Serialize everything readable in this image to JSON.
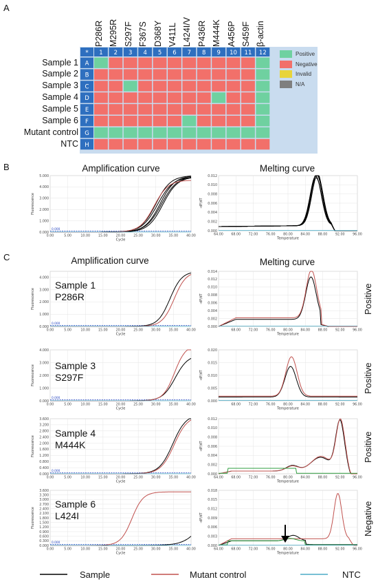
{
  "panel_a": {
    "letter": "A",
    "columns": [
      "P286R",
      "M295R",
      "S297F",
      "F367S",
      "D368Y",
      "V411L",
      "L424I/V",
      "P436R",
      "M444K",
      "A456P",
      "S459F",
      "β-actin"
    ],
    "col_numbers": [
      "1",
      "2",
      "3",
      "4",
      "5",
      "6",
      "7",
      "8",
      "9",
      "10",
      "11",
      "12"
    ],
    "corner": "*",
    "rows": [
      {
        "name": "Sample 1",
        "letter": "A",
        "cells": [
          "P",
          "N",
          "N",
          "N",
          "N",
          "N",
          "N",
          "N",
          "N",
          "N",
          "N",
          "P"
        ]
      },
      {
        "name": "Sample 2",
        "letter": "B",
        "cells": [
          "N",
          "N",
          "N",
          "N",
          "N",
          "N",
          "N",
          "N",
          "N",
          "N",
          "N",
          "P"
        ]
      },
      {
        "name": "Sample 3",
        "letter": "C",
        "cells": [
          "N",
          "N",
          "P",
          "N",
          "N",
          "N",
          "N",
          "N",
          "N",
          "N",
          "N",
          "P"
        ]
      },
      {
        "name": "Sample 4",
        "letter": "D",
        "cells": [
          "N",
          "N",
          "N",
          "N",
          "N",
          "N",
          "N",
          "N",
          "P",
          "N",
          "N",
          "P"
        ]
      },
      {
        "name": "Sample 5",
        "letter": "E",
        "cells": [
          "N",
          "N",
          "N",
          "N",
          "N",
          "N",
          "N",
          "N",
          "N",
          "N",
          "N",
          "P"
        ]
      },
      {
        "name": "Sample 6",
        "letter": "F",
        "cells": [
          "N",
          "N",
          "N",
          "N",
          "N",
          "N",
          "P",
          "N",
          "N",
          "N",
          "N",
          "P"
        ]
      },
      {
        "name": "Mutant control",
        "letter": "G",
        "cells": [
          "P",
          "P",
          "P",
          "P",
          "P",
          "P",
          "P",
          "P",
          "P",
          "P",
          "P",
          "P"
        ]
      },
      {
        "name": "NTC",
        "letter": "H",
        "cells": [
          "N",
          "N",
          "N",
          "N",
          "N",
          "N",
          "N",
          "N",
          "N",
          "N",
          "N",
          "N"
        ]
      }
    ],
    "legend": [
      {
        "label": "Positive",
        "color": "#6fd1a0"
      },
      {
        "label": "Negative",
        "color": "#f2706a"
      },
      {
        "label": "Invalid",
        "color": "#e8d43a"
      },
      {
        "label": "N/A",
        "color": "#7f7f7f"
      }
    ]
  },
  "panel_b": {
    "letter": "B",
    "amp_title": "Amplification curve",
    "melt_title": "Melting curve"
  },
  "panel_c": {
    "letter": "C",
    "amp_title": "Amplification curve",
    "melt_title": "Melting curve",
    "samples": [
      {
        "label": "Sample 1\nP286R",
        "result": "Positive"
      },
      {
        "label": "Sample 3\nS297F",
        "result": "Positive"
      },
      {
        "label": "Sample 4\nM444K",
        "result": "Positive"
      },
      {
        "label": "Sample 6\nL424I",
        "result": "Negative"
      }
    ]
  },
  "axis_text": {
    "cycle": "Cycle",
    "temperature": "Temperature",
    "fluorescence": "Fluorescence",
    "dfdt": "-dF/dT",
    "threshold": "0.000"
  },
  "chart_data": [
    {
      "type": "line",
      "title": "Amplification curve",
      "xlabel": "Cycle",
      "ylabel": "Fluorescence",
      "xlim": [
        0,
        40
      ],
      "ylim": [
        0,
        5.0
      ],
      "xticks": [
        "0.00",
        "5.00",
        "10.00",
        "15.00",
        "20.00",
        "25.00",
        "30.00",
        "35.00",
        "40.00"
      ],
      "yticks": [
        "0.000",
        "1.000",
        "2.000",
        "3.000",
        "4.000",
        "5.000"
      ]
    },
    {
      "type": "line",
      "title": "Melting curve",
      "xlabel": "Temperature",
      "ylabel": "-dF/dT",
      "xlim": [
        64,
        96
      ],
      "ylim": [
        0,
        0.012
      ],
      "xticks": [
        "64.00",
        "68.00",
        "72.00",
        "76.00",
        "80.00",
        "84.00",
        "88.00",
        "92.00",
        "96.00"
      ],
      "yticks": [
        "0.000",
        "0.002",
        "0.004",
        "0.006",
        "0.008",
        "0.010",
        "0.012"
      ]
    },
    {
      "type": "line",
      "sample": "Sample 1 P286R",
      "kind": "amplification",
      "xlabel": "Cycle",
      "ylabel": "Fluorescence",
      "xlim": [
        0,
        40
      ],
      "ylim": [
        0,
        4.5
      ],
      "xticks": [
        "0.00",
        "5.00",
        "10.00",
        "15.00",
        "20.00",
        "25.00",
        "30.00",
        "35.00",
        "40.00"
      ],
      "yticks": [
        "0.000",
        "1.000",
        "2.000",
        "3.000",
        "4.000"
      ]
    },
    {
      "type": "line",
      "sample": "Sample 1 P286R",
      "kind": "melting",
      "xlabel": "Temperature",
      "ylabel": "-dF/dT",
      "xlim": [
        64,
        96
      ],
      "ylim": [
        0,
        0.014
      ],
      "xticks": [
        "68.00",
        "72.00",
        "76.00",
        "80.00",
        "84.00",
        "88.00",
        "92.00",
        "96.00"
      ],
      "yticks": [
        "0.000",
        "0.002",
        "0.004",
        "0.006",
        "0.008",
        "0.010",
        "0.012",
        "0.014"
      ]
    },
    {
      "type": "line",
      "sample": "Sample 3 S297F",
      "kind": "amplification",
      "xlabel": "Cycle",
      "ylabel": "Fluorescence",
      "xlim": [
        0,
        40
      ],
      "ylim": [
        0,
        4.0
      ],
      "xticks": [
        "0.00",
        "5.00",
        "10.00",
        "15.00",
        "20.00",
        "25.00",
        "30.00",
        "35.00",
        "40.00"
      ],
      "yticks": [
        "0.000",
        "1.000",
        "2.000",
        "3.000",
        "4.000"
      ]
    },
    {
      "type": "line",
      "sample": "Sample 3 S297F",
      "kind": "melting",
      "xlabel": "Temperature",
      "ylabel": "-dF/dT",
      "xlim": [
        64,
        96
      ],
      "ylim": [
        0,
        0.02
      ],
      "xticks": [
        "68.00",
        "72.00",
        "76.00",
        "80.00",
        "84.00",
        "88.00",
        "92.00",
        "96.00"
      ],
      "yticks": [
        "0.000",
        "0.005",
        "0.010",
        "0.015",
        "0.020"
      ]
    },
    {
      "type": "line",
      "sample": "Sample 4 M444K",
      "kind": "amplification",
      "xlabel": "Cycle",
      "ylabel": "Fluorescence",
      "xlim": [
        0,
        40
      ],
      "ylim": [
        0,
        3.6
      ],
      "xticks": [
        "0.00",
        "5.00",
        "10.00",
        "15.00",
        "20.00",
        "25.00",
        "30.00",
        "35.00",
        "40.00"
      ],
      "yticks": [
        "0.000",
        "0.400",
        "0.800",
        "1.200",
        "1.600",
        "2.000",
        "2.400",
        "2.800",
        "3.200",
        "3.600"
      ]
    },
    {
      "type": "line",
      "sample": "Sample 4 M444K",
      "kind": "melting",
      "xlabel": "Temperature",
      "ylabel": "-dF/dT",
      "xlim": [
        64,
        96
      ],
      "ylim": [
        0,
        0.012
      ],
      "xticks": [
        "64.00",
        "68.00",
        "72.00",
        "76.00",
        "80.00",
        "84.00",
        "88.00",
        "92.00",
        "96.00"
      ],
      "yticks": [
        "0.000",
        "0.002",
        "0.004",
        "0.006",
        "0.008",
        "0.010",
        "0.012"
      ]
    },
    {
      "type": "line",
      "sample": "Sample 6 L424I",
      "kind": "amplification",
      "xlabel": "Cycle",
      "ylabel": "Fluorescence",
      "xlim": [
        0,
        40
      ],
      "ylim": [
        0,
        3.6
      ],
      "xticks": [
        "0.00",
        "5.00",
        "10.00",
        "15.00",
        "20.00",
        "25.00",
        "30.00",
        "35.00",
        "40.00"
      ],
      "yticks": [
        "0.000",
        "0.300",
        "0.600",
        "0.900",
        "1.200",
        "1.500",
        "1.800",
        "2.100",
        "2.400",
        "2.700",
        "3.000",
        "3.300",
        "3.600"
      ]
    },
    {
      "type": "line",
      "sample": "Sample 6 L424I",
      "kind": "melting",
      "xlabel": "Temperature",
      "ylabel": "-dF/dT",
      "xlim": [
        64,
        96
      ],
      "ylim": [
        0,
        0.018
      ],
      "xticks": [
        "64.00",
        "68.00",
        "72.00",
        "76.00",
        "80.00",
        "84.00",
        "88.00",
        "92.00",
        "96.00"
      ],
      "yticks": [
        "0.000",
        "0.003",
        "0.006",
        "0.009",
        "0.012",
        "0.015",
        "0.018"
      ]
    }
  ],
  "bottom_legend": [
    {
      "label": "Sample",
      "color": "#000000"
    },
    {
      "label": "Mutant control",
      "color": "#c0504d"
    },
    {
      "label": "NTC",
      "color": "#4bacc6"
    }
  ]
}
